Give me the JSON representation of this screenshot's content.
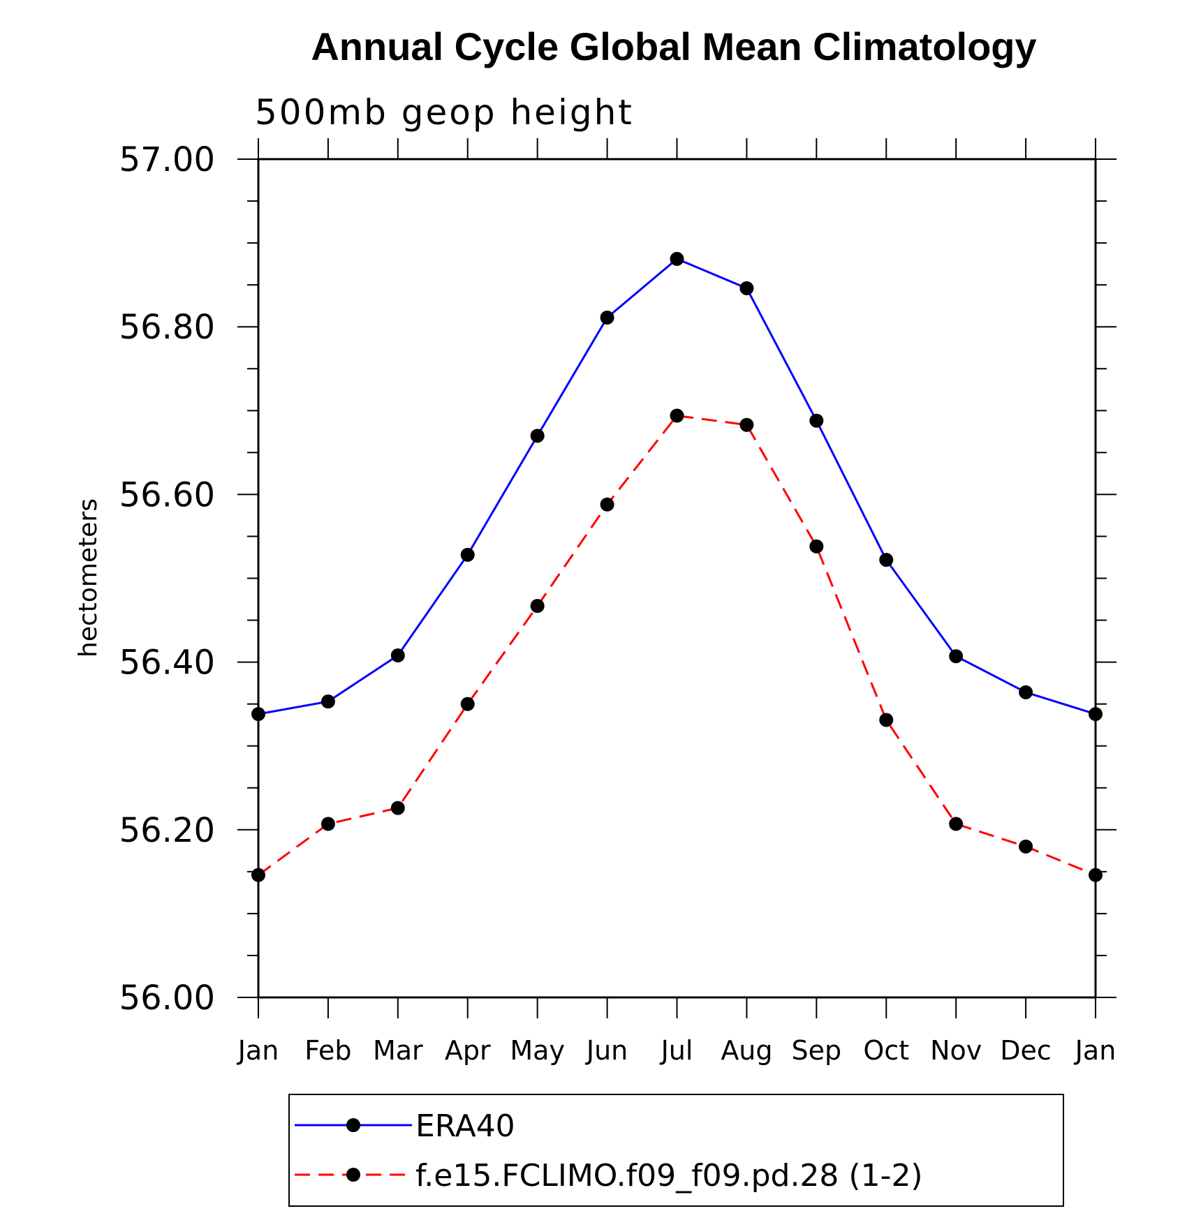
{
  "chart_data": {
    "type": "line",
    "title": "Annual Cycle Global Mean Climatology",
    "subtitle": "500mb geop height",
    "ylabel": "hectometers",
    "xlabel": "",
    "categories": [
      "Jan",
      "Feb",
      "Mar",
      "Apr",
      "May",
      "Jun",
      "Jul",
      "Aug",
      "Sep",
      "Oct",
      "Nov",
      "Dec",
      "Jan"
    ],
    "ylim": [
      56.0,
      57.0
    ],
    "yticks": [
      "56.00",
      "56.20",
      "56.40",
      "56.60",
      "56.80",
      "57.00"
    ],
    "grid": false,
    "legend_position": "bottom",
    "series": [
      {
        "name": "ERA40",
        "color": "#0000ff",
        "line_style": "solid",
        "marker": "filled-circle",
        "values": [
          56.338,
          56.353,
          56.408,
          56.528,
          56.67,
          56.811,
          56.881,
          56.846,
          56.688,
          56.522,
          56.407,
          56.364,
          56.338
        ]
      },
      {
        "name": "f.e15.FCLIMO.f09_f09.pd.28 (1-2)",
        "color": "#ff0000",
        "line_style": "dashed",
        "marker": "filled-circle",
        "values": [
          56.146,
          56.207,
          56.226,
          56.35,
          56.467,
          56.588,
          56.694,
          56.683,
          56.538,
          56.331,
          56.207,
          56.18,
          56.146
        ]
      }
    ]
  }
}
